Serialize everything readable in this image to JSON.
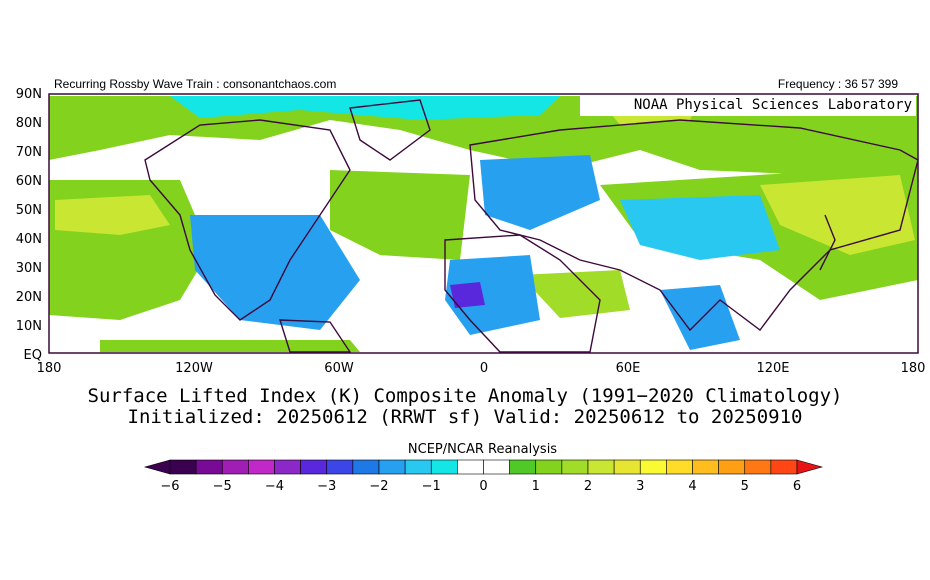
{
  "header": {
    "left": "Recurring Rossby Wave Train : consonantchaos.com",
    "right": "Frequency : 36 57 399"
  },
  "credit": "NOAA Physical Sciences Laboratory",
  "axes": {
    "lat_labels": [
      "90N",
      "80N",
      "70N",
      "60N",
      "50N",
      "40N",
      "30N",
      "20N",
      "10N",
      "EQ"
    ],
    "lon_labels": [
      "180",
      "120W",
      "60W",
      "0",
      "60E",
      "120E",
      "180"
    ]
  },
  "title": {
    "line1": "Surface Lifted Index (K) Composite Anomaly (1991−2020 Climatology)",
    "line2": "Initialized: 20250612 (RRWT sf) Valid: 20250612 to 20250910"
  },
  "colorbar": {
    "label": "NCEP/NCAR Reanalysis",
    "ticks": [
      "−6",
      "−5",
      "−4",
      "−3",
      "−2",
      "−1",
      "0",
      "1",
      "2",
      "3",
      "4",
      "5",
      "6"
    ],
    "colors": [
      "#3c0050",
      "#780a96",
      "#a01eb4",
      "#c028c8",
      "#8c28c8",
      "#5a28dc",
      "#3c46e6",
      "#1e78e6",
      "#28a0f0",
      "#28c8f0",
      "#14e6e6",
      "#ffffff",
      "#ffffff",
      "#50c828",
      "#82d21e",
      "#a0dc28",
      "#c8e632",
      "#e6e632",
      "#fafa32",
      "#ffdc28",
      "#ffbe1e",
      "#ffa014",
      "#ff7814",
      "#ff4614"
    ],
    "under_color": "#3c0050",
    "over_color": "#e61414"
  }
}
